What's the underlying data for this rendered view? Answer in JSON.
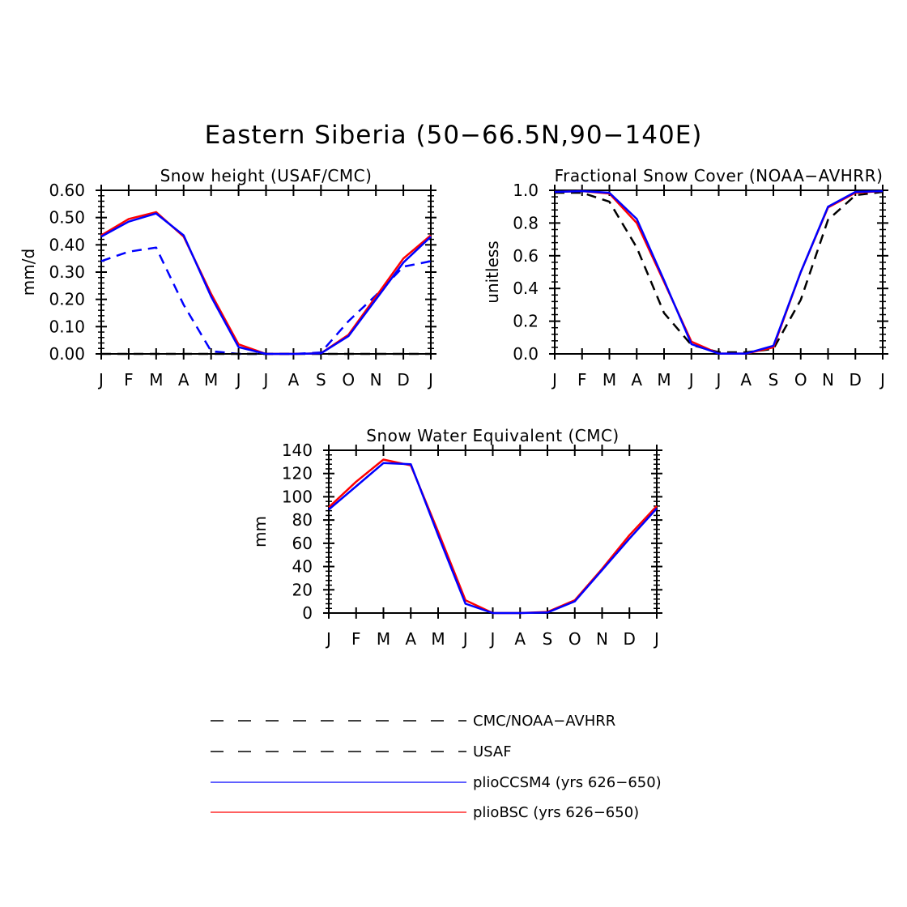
{
  "figure_title": "Eastern Siberia (50−66.5N,90−140E)",
  "colors": {
    "obs_cmc_noaa": "#000000",
    "obs_usaf": "#0000ff",
    "pliocsm4": "#0000ff",
    "pliobsc": "#ff0000"
  },
  "legend": [
    {
      "label": "CMC/NOAA−AVHRR",
      "style": "dashed",
      "color": "#000000"
    },
    {
      "label": "USAF",
      "style": "dashed",
      "color": "#000000"
    },
    {
      "label": "plioCCSM4 (yrs 626−650)",
      "style": "solid",
      "color": "#0000ff"
    },
    {
      "label": "plioBSC (yrs 626−650)",
      "style": "solid",
      "color": "#ff0000"
    }
  ],
  "chart_data": [
    {
      "type": "line",
      "title": "Snow height (USAF/CMC)",
      "ylabel": "mm/d",
      "xlabel": "",
      "categories": [
        "J",
        "F",
        "M",
        "A",
        "M",
        "J",
        "J",
        "A",
        "S",
        "O",
        "N",
        "D",
        "J"
      ],
      "ylim": [
        0,
        0.6
      ],
      "yticks": [
        0,
        0.1,
        0.2,
        0.3,
        0.4,
        0.5,
        0.6
      ],
      "ytick_labels": [
        "0.00",
        "0.10",
        "0.20",
        "0.30",
        "0.40",
        "0.50",
        "0.60"
      ],
      "series": [
        {
          "name": "USAF",
          "style": "dashed",
          "color": "#0000ff",
          "values": [
            0.34,
            0.375,
            0.39,
            0.18,
            0.01,
            0.0,
            0.0,
            0.0,
            0.005,
            0.12,
            0.215,
            0.32,
            0.34
          ]
        },
        {
          "name": "CMC/NOAA−AVHRR",
          "style": "dashed",
          "color": "#000000",
          "values": [
            0,
            0,
            0,
            0,
            0,
            0,
            0,
            0,
            0,
            0,
            0,
            0,
            0
          ]
        },
        {
          "name": "plioBSC (yrs 626−650)",
          "style": "solid",
          "color": "#ff0000",
          "values": [
            0.435,
            0.495,
            0.52,
            0.43,
            0.22,
            0.035,
            0.0,
            0.0,
            0.002,
            0.07,
            0.21,
            0.35,
            0.435
          ]
        },
        {
          "name": "plioCCSM4 (yrs 626−650)",
          "style": "solid",
          "color": "#0000ff",
          "values": [
            0.43,
            0.485,
            0.515,
            0.435,
            0.21,
            0.025,
            0.0,
            0.0,
            0.002,
            0.065,
            0.2,
            0.335,
            0.43
          ]
        }
      ]
    },
    {
      "type": "line",
      "title": "Fractional Snow Cover (NOAA−AVHRR)",
      "ylabel": "unitless",
      "xlabel": "",
      "categories": [
        "J",
        "F",
        "M",
        "A",
        "M",
        "J",
        "J",
        "A",
        "S",
        "O",
        "N",
        "D",
        "J"
      ],
      "ylim": [
        0,
        1.0
      ],
      "yticks": [
        0,
        0.2,
        0.4,
        0.6,
        0.8,
        1.0
      ],
      "ytick_labels": [
        "0.0",
        "0.2",
        "0.4",
        "0.6",
        "0.8",
        "1.0"
      ],
      "series": [
        {
          "name": "CMC/NOAA−AVHRR",
          "style": "dashed",
          "color": "#000000",
          "values": [
            0.985,
            0.985,
            0.93,
            0.65,
            0.25,
            0.055,
            0.01,
            0.01,
            0.03,
            0.33,
            0.82,
            0.97,
            0.99
          ]
        },
        {
          "name": "plioBSC (yrs 626−650)",
          "style": "solid",
          "color": "#ff0000",
          "values": [
            0.99,
            0.995,
            0.98,
            0.8,
            0.44,
            0.075,
            0.002,
            0.002,
            0.04,
            0.5,
            0.895,
            0.985,
            0.995
          ]
        },
        {
          "name": "plioCCSM4 (yrs 626−650)",
          "style": "solid",
          "color": "#0000ff",
          "values": [
            0.99,
            0.995,
            0.985,
            0.825,
            0.45,
            0.06,
            0.002,
            0.002,
            0.05,
            0.5,
            0.9,
            0.99,
            0.995
          ]
        }
      ]
    },
    {
      "type": "line",
      "title": "Snow Water Equivalent (CMC)",
      "ylabel": "mm",
      "xlabel": "",
      "categories": [
        "J",
        "F",
        "M",
        "A",
        "M",
        "J",
        "J",
        "A",
        "S",
        "O",
        "N",
        "D",
        "J"
      ],
      "ylim": [
        0,
        140
      ],
      "yticks": [
        0,
        20,
        40,
        60,
        80,
        100,
        120,
        140
      ],
      "ytick_labels": [
        "0",
        "20",
        "40",
        "60",
        "80",
        "100",
        "120",
        "140"
      ],
      "series": [
        {
          "name": "plioBSC (yrs 626−650)",
          "style": "solid",
          "color": "#ff0000",
          "values": [
            91,
            113,
            132,
            127,
            70,
            11,
            0,
            0,
            1,
            11,
            38,
            67,
            92
          ]
        },
        {
          "name": "plioCCSM4 (yrs 626−650)",
          "style": "solid",
          "color": "#0000ff",
          "values": [
            89,
            109,
            129,
            128,
            67,
            8,
            0,
            0,
            0.5,
            10,
            37,
            64,
            90
          ]
        }
      ]
    }
  ]
}
